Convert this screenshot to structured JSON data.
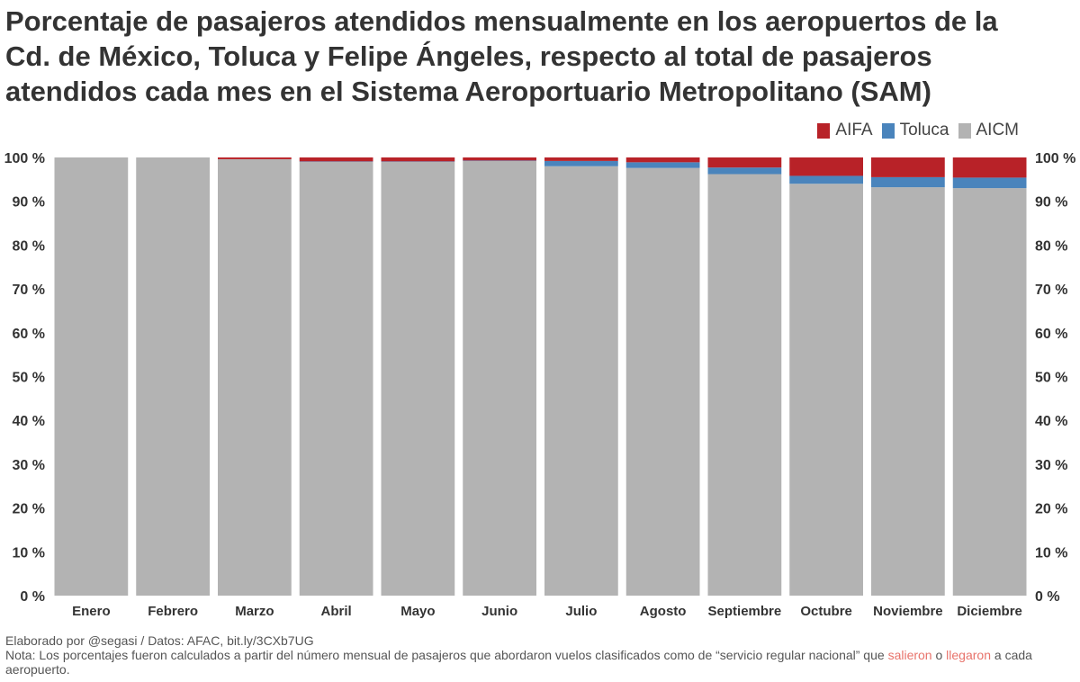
{
  "chart_data": {
    "type": "bar",
    "stacked": true,
    "title": "Porcentaje de pasajeros atendidos mensualmente en los aeropuertos de la Cd. de México, Toluca y Felipe Ángeles, respecto al total de pasajeros atendidos cada mes en el Sistema Aeroportuario Metropolitano (SAM)",
    "categories": [
      "Enero",
      "Febrero",
      "Marzo",
      "Abril",
      "Mayo",
      "Junio",
      "Julio",
      "Agosto",
      "Septiembre",
      "Octubre",
      "Noviembre",
      "Diciembre"
    ],
    "series": [
      {
        "name": "AICM",
        "color": "#b3b3b3",
        "values": [
          100,
          100,
          99.6,
          99.0,
          99.0,
          99.2,
          98.0,
          97.6,
          96.2,
          94.0,
          93.2,
          93.0
        ]
      },
      {
        "name": "Toluca",
        "color": "#4a84bc",
        "values": [
          0,
          0,
          0,
          0.1,
          0.1,
          0.1,
          1.2,
          1.3,
          1.5,
          1.8,
          2.3,
          2.4
        ]
      },
      {
        "name": "AIFA",
        "color": "#b82228",
        "values": [
          0,
          0,
          0.4,
          0.9,
          0.9,
          0.7,
          0.8,
          1.1,
          2.3,
          4.2,
          4.5,
          4.6
        ]
      }
    ],
    "ylim": [
      0,
      100
    ],
    "yticks": [
      0,
      10,
      20,
      30,
      40,
      50,
      60,
      70,
      80,
      90,
      100
    ],
    "ytick_labels": [
      "0 %",
      "10 %",
      "20 %",
      "30 %",
      "40 %",
      "50 %",
      "60 %",
      "70 %",
      "80 %",
      "90 %",
      "100 %"
    ],
    "legend_order": [
      "AIFA",
      "Toluca",
      "AICM"
    ],
    "legend_position": "top-right",
    "xlabel": "",
    "ylabel": ""
  },
  "footer": {
    "credit": "Elaborado por @segasi / Datos: AFAC, bit.ly/3CXb7UG",
    "note_start": "Nota: Los porcentajes fueron calculados a partir del número mensual de pasajeros que abordaron vuelos clasificados como de “servicio regular nacional” que ",
    "note_hl1": "salieron",
    "note_mid": " o ",
    "note_hl2": "llegaron",
    "note_end": " a cada aeropuerto."
  }
}
